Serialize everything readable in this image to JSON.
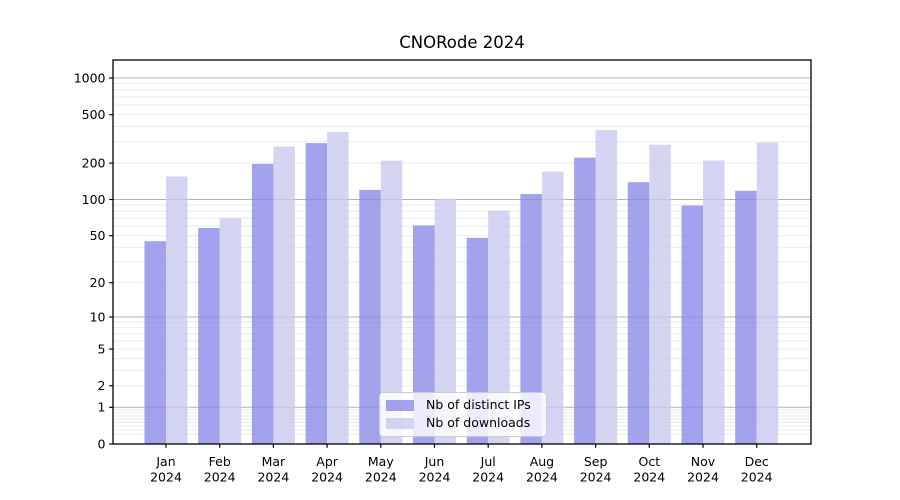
{
  "chart_data": {
    "type": "bar",
    "title": "CNORode 2024",
    "categories": [
      "Jan",
      "Feb",
      "Mar",
      "Apr",
      "May",
      "Jun",
      "Jul",
      "Aug",
      "Sep",
      "Oct",
      "Nov",
      "Dec"
    ],
    "x_tick_year": "2024",
    "series": [
      {
        "name": "Nb of distinct IPs",
        "color": "#8888e8",
        "values": [
          45,
          58,
          197,
          292,
          120,
          61,
          48,
          111,
          222,
          139,
          89,
          118
        ]
      },
      {
        "name": "Nb of downloads",
        "color": "#c8c8f0",
        "values": [
          155,
          70,
          274,
          360,
          209,
          101,
          81,
          170,
          374,
          283,
          210,
          295
        ]
      }
    ],
    "y_axis": {
      "scale": "log10(1+x)",
      "tick_values": [
        0,
        1,
        2,
        5,
        10,
        20,
        50,
        100,
        200,
        500,
        1000
      ],
      "range_top_value": 1400
    },
    "legend": {
      "position": "lower center",
      "entries": [
        "Nb of distinct IPs",
        "Nb of downloads"
      ]
    },
    "grid": "horizontal, log minor + major decade lines"
  },
  "colors": {
    "bar_distinct_ips": "#8888e8",
    "bar_downloads": "#c8c8f0",
    "bar_opacity": "0.78",
    "grid_major": "#b3b3b3",
    "grid_minor": "#e8e8e8",
    "axis": "#000000",
    "legend_border": "#cccccc",
    "background": "#ffffff"
  }
}
